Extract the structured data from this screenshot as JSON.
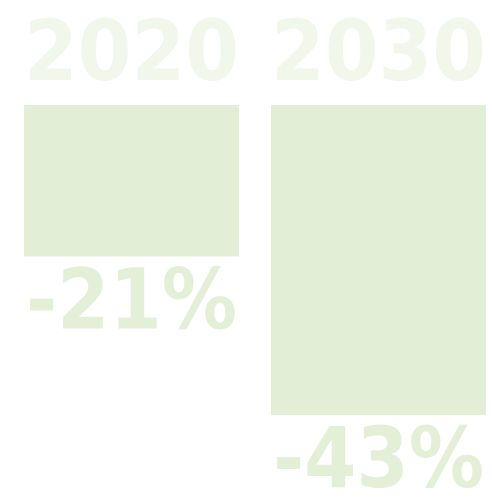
{
  "chart_data": {
    "type": "bar",
    "categories": [
      "2020",
      "2030"
    ],
    "values": [
      -21,
      -43
    ],
    "value_labels": [
      "-21%",
      "-43%"
    ],
    "color": "#e2efd6"
  }
}
